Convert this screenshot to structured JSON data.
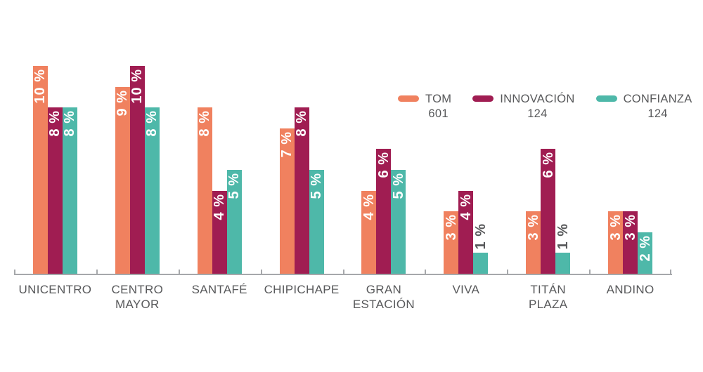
{
  "chart_data": {
    "type": "bar",
    "title": "",
    "categories": [
      "UNICENTRO",
      "CENTRO\nMAYOR",
      "SANTAFÉ",
      "CHIPICHAPE",
      "GRAN\nESTACIÓN",
      "VIVA",
      "TITÁN\nPLAZA",
      "ANDINO"
    ],
    "series": [
      {
        "name": "TOM",
        "count": "601",
        "color": "#F0815F",
        "values": [
          10,
          9,
          8,
          7,
          4,
          3,
          3,
          3
        ]
      },
      {
        "name": "INNOVACIÓN",
        "count": "124",
        "color": "#A01D52",
        "values": [
          8,
          10,
          4,
          8,
          6,
          4,
          6,
          3
        ]
      },
      {
        "name": "CONFIANZA",
        "count": "124",
        "color": "#4EB8A9",
        "values": [
          8,
          8,
          5,
          5,
          5,
          1,
          1,
          2
        ]
      }
    ],
    "unit": "%",
    "value_label_suffix": " %",
    "ylim": [
      0,
      10.2
    ],
    "grid": false,
    "legend_position": "top-right",
    "colors": {
      "bar_label_inside": "#FFFFFF",
      "bar_label_outside": "#58595B",
      "axis_line": "#A6A8AB",
      "tick": "#A6A8AB",
      "category_label": "#58595B",
      "legend_text": "#58595B",
      "background": "#FFFFFF"
    }
  }
}
